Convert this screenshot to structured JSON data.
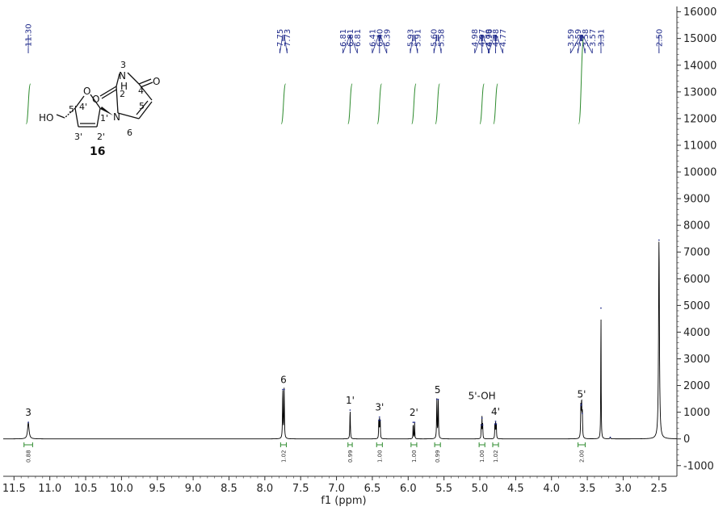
{
  "chart_data": {
    "type": "line",
    "title": "",
    "xlabel": "f1 (ppm)",
    "ylabel": "",
    "xlim": [
      11.65,
      2.25
    ],
    "ylim": [
      -1400,
      16200
    ],
    "x_ticks": [
      "11.5",
      "11.0",
      "10.5",
      "10.0",
      "9.5",
      "9.0",
      "8.5",
      "8.0",
      "7.5",
      "7.0",
      "6.5",
      "6.0",
      "5.5",
      "5.0",
      "4.5",
      "4.0",
      "3.5",
      "3.0",
      "2.5"
    ],
    "y_ticks": [
      "16000",
      "15000",
      "14000",
      "13000",
      "12000",
      "11000",
      "10000",
      "9000",
      "8000",
      "7000",
      "6000",
      "5000",
      "4000",
      "3000",
      "2000",
      "1000",
      "0",
      "-1000"
    ],
    "peaks": [
      {
        "ppm": 11.3,
        "height": 620,
        "width": 0.012
      },
      {
        "ppm": 7.75,
        "height": 1850,
        "width": 0.004
      },
      {
        "ppm": 7.73,
        "height": 1850,
        "width": 0.004
      },
      {
        "ppm": 6.81,
        "height": 1080,
        "width": 0.004
      },
      {
        "ppm": 6.41,
        "height": 700,
        "width": 0.003
      },
      {
        "ppm": 6.4,
        "height": 820,
        "width": 0.003
      },
      {
        "ppm": 6.39,
        "height": 700,
        "width": 0.003
      },
      {
        "ppm": 5.93,
        "height": 620,
        "width": 0.003
      },
      {
        "ppm": 5.91,
        "height": 620,
        "width": 0.003
      },
      {
        "ppm": 5.6,
        "height": 1480,
        "width": 0.004
      },
      {
        "ppm": 5.58,
        "height": 1480,
        "width": 0.004
      },
      {
        "ppm": 4.98,
        "height": 520,
        "width": 0.003
      },
      {
        "ppm": 4.97,
        "height": 780,
        "width": 0.003
      },
      {
        "ppm": 4.96,
        "height": 520,
        "width": 0.003
      },
      {
        "ppm": 4.79,
        "height": 560,
        "width": 0.003
      },
      {
        "ppm": 4.78,
        "height": 660,
        "width": 0.003
      },
      {
        "ppm": 4.77,
        "height": 560,
        "width": 0.003
      },
      {
        "ppm": 3.59,
        "height": 1250,
        "width": 0.004
      },
      {
        "ppm": 3.58,
        "height": 1300,
        "width": 0.004
      },
      {
        "ppm": 3.57,
        "height": 950,
        "width": 0.004
      },
      {
        "ppm": 3.31,
        "height": 4900,
        "width": 0.003
      },
      {
        "ppm": 3.18,
        "height": 60,
        "width": 0.005
      },
      {
        "ppm": 2.5,
        "height": 7450,
        "width": 0.007
      }
    ],
    "peak_labels": [
      {
        "group": 1,
        "ppm": 11.3,
        "text": "11.30"
      },
      {
        "group": 2,
        "ppm": 7.75,
        "text": "7.75"
      },
      {
        "group": 2,
        "ppm": 7.73,
        "text": "7.73"
      },
      {
        "group": 3,
        "ppm": 6.81,
        "text": "6.81"
      },
      {
        "group": 3,
        "ppm": 6.81,
        "text": "6.81"
      },
      {
        "group": 3,
        "ppm": 6.81,
        "text": "6.81"
      },
      {
        "group": 4,
        "ppm": 6.41,
        "text": "6.41"
      },
      {
        "group": 4,
        "ppm": 6.4,
        "text": "6.40"
      },
      {
        "group": 4,
        "ppm": 6.39,
        "text": "6.39"
      },
      {
        "group": 5,
        "ppm": 5.93,
        "text": "5.93"
      },
      {
        "group": 5,
        "ppm": 5.91,
        "text": "5.91"
      },
      {
        "group": 6,
        "ppm": 5.6,
        "text": "5.60"
      },
      {
        "group": 6,
        "ppm": 5.58,
        "text": "5.58"
      },
      {
        "group": 7,
        "ppm": 4.98,
        "text": "4.98"
      },
      {
        "group": 7,
        "ppm": 4.97,
        "text": "4.97"
      },
      {
        "group": 7,
        "ppm": 4.96,
        "text": "4.96"
      },
      {
        "group": 8,
        "ppm": 4.79,
        "text": "4.79"
      },
      {
        "group": 8,
        "ppm": 4.78,
        "text": "4.78"
      },
      {
        "group": 8,
        "ppm": 4.77,
        "text": "4.77"
      },
      {
        "group": 9,
        "ppm": 3.59,
        "text": "3.59"
      },
      {
        "group": 9,
        "ppm": 3.59,
        "text": "3.59"
      },
      {
        "group": 9,
        "ppm": 3.58,
        "text": "3.58"
      },
      {
        "group": 9,
        "ppm": 3.57,
        "text": "3.57"
      },
      {
        "group": 10,
        "ppm": 3.31,
        "text": "3.31"
      },
      {
        "group": 11,
        "ppm": 2.5,
        "text": "2.50"
      }
    ],
    "assignments": [
      {
        "label": "3",
        "ppm": 11.3,
        "height": 620
      },
      {
        "label": "6",
        "ppm": 7.74,
        "height": 1850
      },
      {
        "label": "1'",
        "ppm": 6.81,
        "height": 1080
      },
      {
        "label": "3'",
        "ppm": 6.4,
        "height": 820
      },
      {
        "label": "2'",
        "ppm": 5.92,
        "height": 620
      },
      {
        "label": "5",
        "ppm": 5.59,
        "height": 1480
      },
      {
        "label": "5'-OH",
        "ppm": 4.97,
        "height": 1250
      },
      {
        "label": "4'",
        "ppm": 4.78,
        "height": 660
      },
      {
        "label": "5'",
        "ppm": 3.58,
        "height": 1300
      }
    ],
    "integrals": [
      {
        "ppm": 11.3,
        "from": 11.36,
        "to": 11.24,
        "value": "0.88"
      },
      {
        "ppm": 7.74,
        "from": 7.78,
        "to": 7.7,
        "value": "1.02"
      },
      {
        "ppm": 6.81,
        "from": 6.84,
        "to": 6.78,
        "value": "0.99"
      },
      {
        "ppm": 6.4,
        "from": 6.44,
        "to": 6.36,
        "value": "1.00"
      },
      {
        "ppm": 5.92,
        "from": 5.96,
        "to": 5.88,
        "value": "1.00"
      },
      {
        "ppm": 5.59,
        "from": 5.63,
        "to": 5.55,
        "value": "0.99"
      },
      {
        "ppm": 4.97,
        "from": 5.01,
        "to": 4.93,
        "value": "1.00"
      },
      {
        "ppm": 4.78,
        "from": 4.82,
        "to": 4.74,
        "value": "1.02"
      },
      {
        "ppm": 3.58,
        "from": 3.63,
        "to": 3.53,
        "value": "2.00"
      }
    ],
    "integral_curves": [
      {
        "from": 11.33,
        "to": 11.27,
        "y0": 11800,
        "y1": 13300
      },
      {
        "from": 7.77,
        "to": 7.71,
        "y0": 11800,
        "y1": 13300
      },
      {
        "from": 6.84,
        "to": 6.78,
        "y0": 11800,
        "y1": 13300
      },
      {
        "from": 6.43,
        "to": 6.37,
        "y0": 11800,
        "y1": 13300
      },
      {
        "from": 5.95,
        "to": 5.89,
        "y0": 11800,
        "y1": 13300
      },
      {
        "from": 5.62,
        "to": 5.56,
        "y0": 11800,
        "y1": 13300
      },
      {
        "from": 5.0,
        "to": 4.94,
        "y0": 11800,
        "y1": 13300
      },
      {
        "from": 4.81,
        "to": 4.75,
        "y0": 11800,
        "y1": 13300
      },
      {
        "from": 3.62,
        "to": 3.55,
        "y0": 11800,
        "y1": 15000
      }
    ],
    "colors": {
      "spectrum": "#000000",
      "peak_label": "#1f2a8a",
      "integral": "#2e8b2e",
      "axis": "#333333"
    },
    "grid": false
  },
  "structure": {
    "compound_number": "16",
    "labels": {
      "n3": "3",
      "nh_n": "N",
      "nh_h": "H",
      "c2": "2",
      "o2": "O",
      "c4": "4",
      "o4": "O",
      "c5": "5",
      "c6": "6",
      "n1": "N",
      "c1p": "1'",
      "c2p": "2'",
      "c3p": "3'",
      "c4p": "4'",
      "c5p": "5'",
      "ring_o": "O",
      "ho": "HO"
    }
  }
}
